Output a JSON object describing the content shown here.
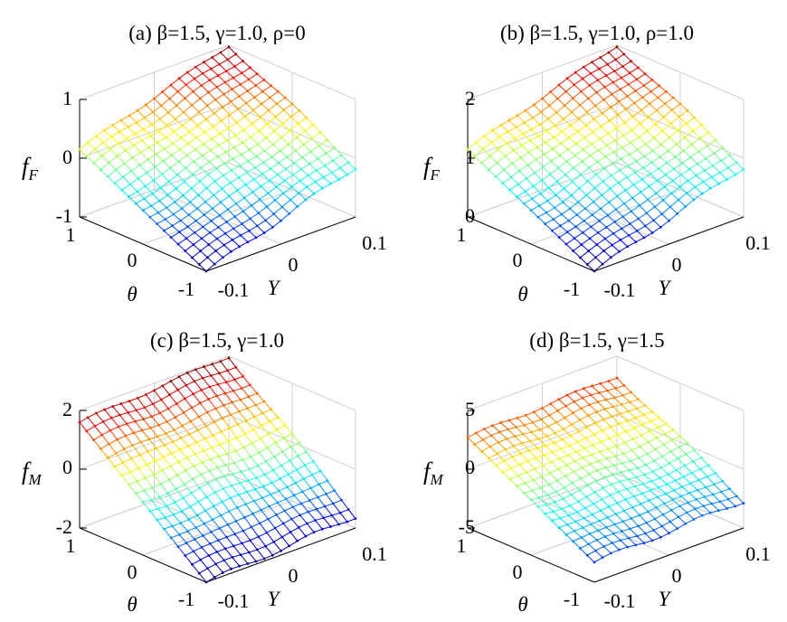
{
  "chart_data": [
    {
      "type": "surface",
      "title": "(a) β=1.5, γ=1.0, ρ=0",
      "zlabel_main": "f",
      "zlabel_sub": "F",
      "xlabel": "Y",
      "ylabel": "θ",
      "x_ticks": [
        "-0.1",
        "0",
        "0.1"
      ],
      "y_ticks": [
        "-1",
        "0",
        "1"
      ],
      "z_ticks": [
        "-1",
        "0",
        "1"
      ],
      "xlim": [
        -0.1,
        0.1
      ],
      "ylim": [
        -1,
        1
      ],
      "zlim": [
        -1,
        1
      ],
      "grid": true,
      "colormap": "jet",
      "surface_corners": {
        "Y=-0.1,theta=-1": -1.0,
        "Y=0.1,theta=-1": -0.15,
        "Y=-0.1,theta=1": 0.15,
        "Y=0.1,theta=1": 1.0
      }
    },
    {
      "type": "surface",
      "title": "(b) β=1.5, γ=1.0, ρ=1.0",
      "zlabel_main": "f",
      "zlabel_sub": "F",
      "xlabel": "Y",
      "ylabel": "θ",
      "x_ticks": [
        "-0.1",
        "0",
        "0.1"
      ],
      "y_ticks": [
        "-1",
        "0",
        "1"
      ],
      "z_ticks": [
        "0",
        "1",
        "2"
      ],
      "xlim": [
        -0.1,
        0.1
      ],
      "ylim": [
        -1,
        1
      ],
      "zlim": [
        0,
        2
      ],
      "grid": true,
      "colormap": "jet",
      "surface_corners": {
        "Y=-0.1,theta=-1": 0.0,
        "Y=0.1,theta=-1": 0.85,
        "Y=-0.1,theta=1": 1.15,
        "Y=0.1,theta=1": 2.0
      }
    },
    {
      "type": "surface",
      "title": "(c) β=1.5, γ=1.0",
      "zlabel_main": "f",
      "zlabel_sub": "M",
      "xlabel": "Y",
      "ylabel": "θ",
      "x_ticks": [
        "-0.1",
        "0",
        "0.1"
      ],
      "y_ticks": [
        "-1",
        "0",
        "1"
      ],
      "z_ticks": [
        "-2",
        "0",
        "2"
      ],
      "xlim": [
        -0.1,
        0.1
      ],
      "ylim": [
        -1,
        1
      ],
      "zlim": [
        -2,
        2
      ],
      "grid": true,
      "colormap": "jet",
      "surface_corners": {
        "Y=-0.1,theta=-1": -2.0,
        "Y=0.1,theta=-1": -1.6,
        "Y=-0.1,theta=1": 1.6,
        "Y=0.1,theta=1": 2.0
      }
    },
    {
      "type": "surface",
      "title": "(d) β=1.5, γ=1.5",
      "zlabel_main": "f",
      "zlabel_sub": "M",
      "xlabel": "Y",
      "ylabel": "θ",
      "x_ticks": [
        "-0.1",
        "0",
        "0.1"
      ],
      "y_ticks": [
        "-1",
        "0",
        "1"
      ],
      "z_ticks": [
        "-5",
        "0",
        "5"
      ],
      "xlim": [
        -0.1,
        0.1
      ],
      "ylim": [
        -1,
        1
      ],
      "zlim": [
        -5,
        5
      ],
      "grid": true,
      "colormap": "jet",
      "surface_corners": {
        "Y=-0.1,theta=-1": -3.3,
        "Y=0.1,theta=-1": -2.7,
        "Y=-0.1,theta=1": 2.7,
        "Y=0.1,theta=1": 3.3
      }
    }
  ]
}
